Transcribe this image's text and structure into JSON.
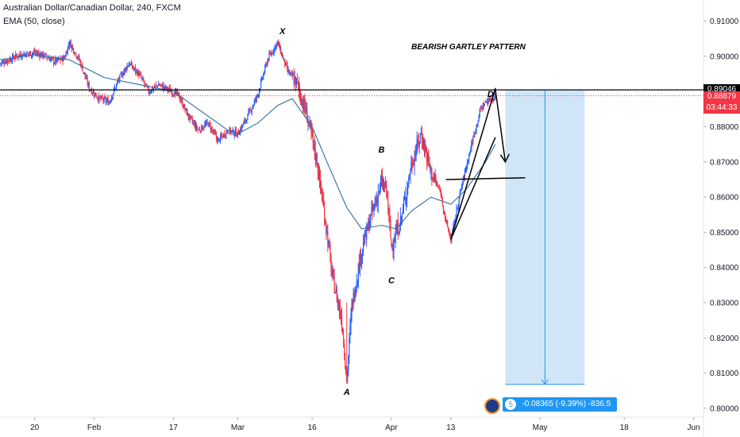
{
  "header": {
    "symbol_line": "Australian Dollar/Canadian Dollar, 240, FXCM",
    "indicator_line": "EMA (50, close)"
  },
  "annotations": {
    "title": "BEARISH GARTLEY PATTERN",
    "point_x": "X",
    "point_a": "A",
    "point_b": "B",
    "point_c": "C",
    "point_d": "D"
  },
  "price_tags": {
    "horizontal_line": "0.89046",
    "last_price": "0.88879",
    "countdown": "03:44:33"
  },
  "measure": {
    "label": "-0.08365 (-9.39%) -836.5",
    "icon_label": "5"
  },
  "colors": {
    "up": "#2962ff",
    "down": "#f23645",
    "ema": "#2e6da4",
    "zone": "#cde5f8",
    "price_line": "#f23645",
    "black_line": "#000000"
  },
  "chart_data": {
    "type": "candlestick",
    "title": "Australian Dollar/Canadian Dollar, 240, FXCM",
    "indicator": "EMA (50, close)",
    "timeframe": "240",
    "y_ticks": [
      0.8,
      0.81,
      0.82,
      0.83,
      0.84,
      0.85,
      0.86,
      0.87,
      0.88,
      0.89,
      0.9,
      0.91
    ],
    "y_tick_labels": [
      "0.80000",
      "0.81000",
      "0.82000",
      "0.83000",
      "0.84000",
      "0.85000",
      "0.86000",
      "0.87000",
      "0.88000",
      "0.89000",
      "0.90000",
      "0.91000"
    ],
    "ylim": [
      0.7975,
      0.916
    ],
    "x_range": [
      "2020-01-13",
      "2020-06-03"
    ],
    "x_ticks": [
      {
        "label": "20",
        "date": "2020-01-20"
      },
      {
        "label": "Feb",
        "date": "2020-02-01"
      },
      {
        "label": "17",
        "date": "2020-02-17"
      },
      {
        "label": "Mar",
        "date": "2020-03-01"
      },
      {
        "label": "16",
        "date": "2020-03-16"
      },
      {
        "label": "Apr",
        "date": "2020-04-01"
      },
      {
        "label": "13",
        "date": "2020-04-13"
      },
      {
        "label": "May",
        "date": "2020-05-01"
      },
      {
        "label": "18",
        "date": "2020-05-18"
      },
      {
        "label": "Jun",
        "date": "2020-06-01"
      }
    ],
    "price_path": [
      [
        "2020-01-13",
        0.898
      ],
      [
        "2020-01-15",
        0.8992
      ],
      [
        "2020-01-17",
        0.9005
      ],
      [
        "2020-01-20",
        0.901
      ],
      [
        "2020-01-22",
        0.9002
      ],
      [
        "2020-01-24",
        0.8985
      ],
      [
        "2020-01-26",
        0.8995
      ],
      [
        "2020-01-27",
        0.904
      ],
      [
        "2020-01-29",
        0.899
      ],
      [
        "2020-01-31",
        0.891
      ],
      [
        "2020-02-02",
        0.888
      ],
      [
        "2020-02-04",
        0.887
      ],
      [
        "2020-02-06",
        0.8935
      ],
      [
        "2020-02-08",
        0.898
      ],
      [
        "2020-02-10",
        0.895
      ],
      [
        "2020-02-12",
        0.89
      ],
      [
        "2020-02-14",
        0.892
      ],
      [
        "2020-02-16",
        0.8905
      ],
      [
        "2020-02-18",
        0.889
      ],
      [
        "2020-02-20",
        0.883
      ],
      [
        "2020-02-22",
        0.879
      ],
      [
        "2020-02-24",
        0.881
      ],
      [
        "2020-02-26",
        0.876
      ],
      [
        "2020-02-28",
        0.879
      ],
      [
        "2020-03-01",
        0.878
      ],
      [
        "2020-03-03",
        0.883
      ],
      [
        "2020-03-05",
        0.889
      ],
      [
        "2020-03-07",
        0.899
      ],
      [
        "2020-03-09",
        0.904
      ],
      [
        "2020-03-11",
        0.896
      ],
      [
        "2020-03-13",
        0.892
      ],
      [
        "2020-03-15",
        0.883
      ],
      [
        "2020-03-17",
        0.87
      ],
      [
        "2020-03-19",
        0.85
      ],
      [
        "2020-03-20",
        0.838
      ],
      [
        "2020-03-22",
        0.825
      ],
      [
        "2020-03-23",
        0.808
      ],
      [
        "2020-03-24",
        0.829
      ],
      [
        "2020-03-26",
        0.845
      ],
      [
        "2020-03-28",
        0.855
      ],
      [
        "2020-03-30",
        0.864
      ],
      [
        "2020-03-31",
        0.862
      ],
      [
        "2020-04-01",
        0.846
      ],
      [
        "2020-04-03",
        0.854
      ],
      [
        "2020-04-05",
        0.869
      ],
      [
        "2020-04-07",
        0.878
      ],
      [
        "2020-04-09",
        0.867
      ],
      [
        "2020-04-11",
        0.861
      ],
      [
        "2020-04-12",
        0.853
      ],
      [
        "2020-04-13",
        0.848
      ],
      [
        "2020-04-15",
        0.862
      ],
      [
        "2020-04-17",
        0.874
      ],
      [
        "2020-04-19",
        0.885
      ],
      [
        "2020-04-20",
        0.887
      ],
      [
        "2020-04-22",
        0.8885
      ]
    ],
    "ema_path": [
      [
        "2020-01-13",
        0.899
      ],
      [
        "2020-01-20",
        0.9005
      ],
      [
        "2020-01-27",
        0.899
      ],
      [
        "2020-02-03",
        0.894
      ],
      [
        "2020-02-10",
        0.892
      ],
      [
        "2020-02-17",
        0.89
      ],
      [
        "2020-02-24",
        0.883
      ],
      [
        "2020-02-28",
        0.879
      ],
      [
        "2020-03-01",
        0.878
      ],
      [
        "2020-03-05",
        0.881
      ],
      [
        "2020-03-09",
        0.886
      ],
      [
        "2020-03-12",
        0.888
      ],
      [
        "2020-03-16",
        0.88
      ],
      [
        "2020-03-19",
        0.87
      ],
      [
        "2020-03-23",
        0.857
      ],
      [
        "2020-03-26",
        0.851
      ],
      [
        "2020-03-30",
        0.852
      ],
      [
        "2020-04-02",
        0.851
      ],
      [
        "2020-04-05",
        0.856
      ],
      [
        "2020-04-09",
        0.86
      ],
      [
        "2020-04-13",
        0.858
      ],
      [
        "2020-04-16",
        0.862
      ],
      [
        "2020-04-20",
        0.87
      ],
      [
        "2020-04-22",
        0.875
      ]
    ],
    "lines": {
      "horizontal_level": 0.89046,
      "last_price": 0.88879
    },
    "pattern_points": {
      "X": {
        "date": "2020-03-10",
        "price": 0.904
      },
      "A": {
        "date": "2020-03-23",
        "price": 0.807
      },
      "B": {
        "date": "2020-03-30",
        "price": 0.87
      },
      "C": {
        "date": "2020-04-01",
        "price": 0.84
      },
      "D": {
        "date": "2020-04-21",
        "price": 0.888
      }
    },
    "trend_lines": [
      {
        "from": {
          "date": "2020-04-13",
          "price": 0.848
        },
        "to": {
          "date": "2020-04-22",
          "price": 0.891
        }
      },
      {
        "from": {
          "date": "2020-04-13",
          "price": 0.848
        },
        "to": {
          "date": "2020-04-22",
          "price": 0.877
        }
      },
      {
        "from": {
          "date": "2020-04-12",
          "price": 0.865
        },
        "to": {
          "date": "2020-04-28",
          "price": 0.8655
        }
      }
    ],
    "arrow": {
      "from": {
        "date": "2020-04-22",
        "price": 0.8905
      },
      "to": {
        "date": "2020-04-24",
        "price": 0.87
      }
    },
    "short_position": {
      "entry": 0.89046,
      "target": 0.80681,
      "change": -0.08365,
      "change_pct": -9.39,
      "pips": -836.5,
      "start_date": "2020-04-24",
      "end_date": "2020-05-10"
    }
  }
}
